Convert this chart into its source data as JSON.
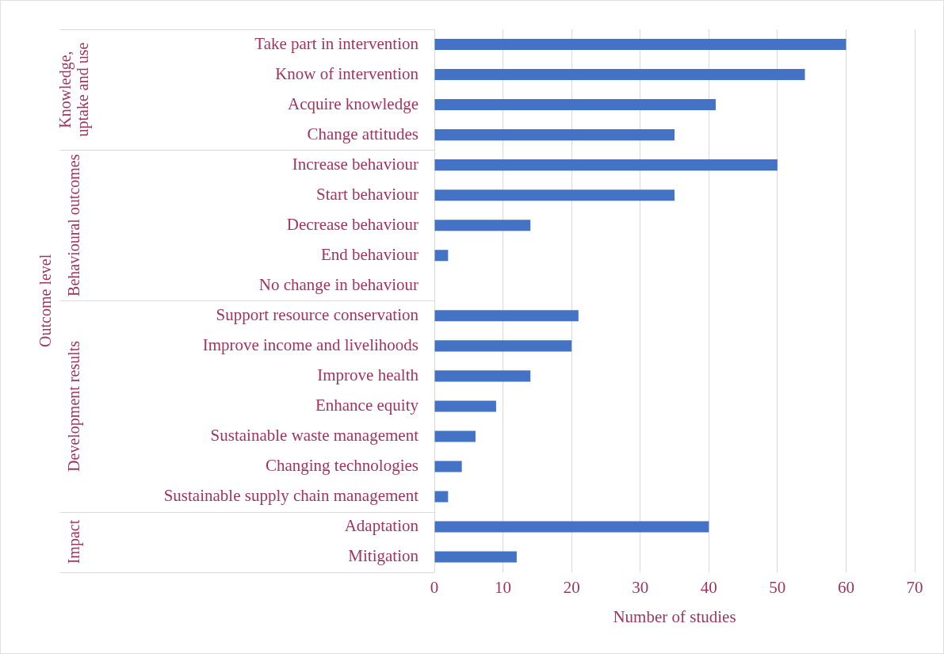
{
  "chart_data": {
    "type": "bar",
    "orientation": "horizontal",
    "xlabel": "Number of studies",
    "categories": [
      "Take part in intervention",
      "Know of intervention",
      "Acquire knowledge",
      "Change attitudes",
      "Increase behaviour",
      "Start behaviour",
      "Decrease behaviour",
      "End behaviour",
      "No change in behaviour",
      "Support resource conservation",
      "Improve income and livelihoods",
      "Improve health",
      "Enhance equity",
      "Sustainable waste management",
      "Changing technologies",
      "Sustainable supply chain management",
      "Adaptation",
      "Mitigation"
    ],
    "values": [
      60,
      54,
      41,
      35,
      50,
      35,
      14,
      2,
      0,
      21,
      20,
      14,
      9,
      6,
      4,
      2,
      40,
      12
    ],
    "color": "#4472c4",
    "xlim": [
      0,
      70
    ],
    "xticks": [
      0,
      10,
      20,
      30,
      40,
      50,
      60,
      70
    ],
    "grid": "x",
    "legend": false,
    "annotations": [
      "Knowledge, uptake and use",
      "Behavioural outcomes",
      "Development results",
      "Impact",
      "Outcome level"
    ]
  }
}
